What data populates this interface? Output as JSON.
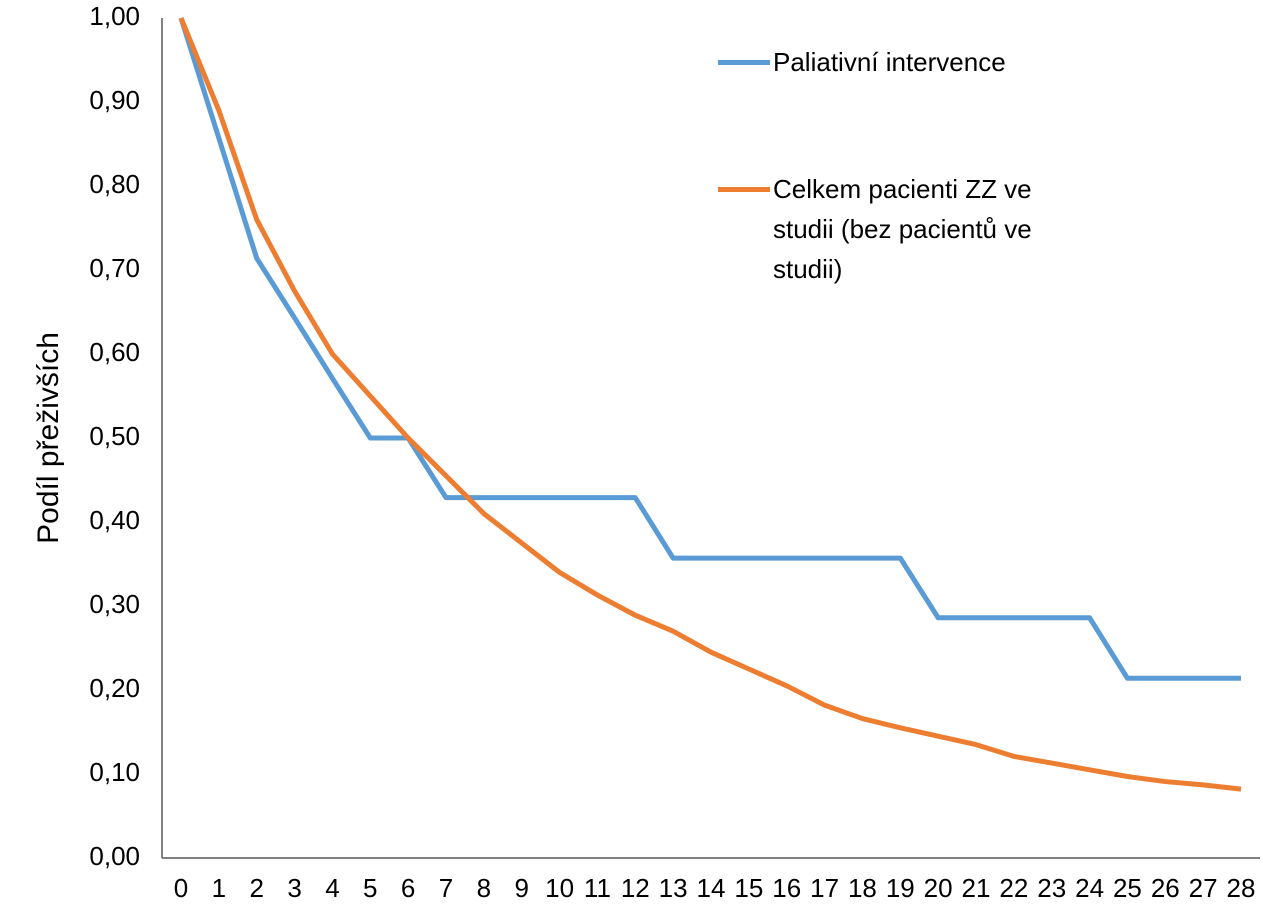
{
  "chart_data": {
    "type": "line",
    "y_label": "Podíl přeživších",
    "categories": [
      0,
      1,
      2,
      3,
      4,
      5,
      6,
      7,
      8,
      9,
      10,
      11,
      12,
      13,
      14,
      15,
      16,
      17,
      18,
      19,
      20,
      21,
      22,
      23,
      24,
      25,
      26,
      27,
      28
    ],
    "series": [
      {
        "name": "Paliativní intervence",
        "color": "#5b9bd5",
        "values": [
          1.0,
          0.857,
          0.714,
          0.643,
          0.571,
          0.5,
          0.5,
          0.429,
          0.429,
          0.429,
          0.429,
          0.429,
          0.429,
          0.357,
          0.357,
          0.357,
          0.357,
          0.357,
          0.357,
          0.357,
          0.286,
          0.286,
          0.286,
          0.286,
          0.286,
          0.214,
          0.214,
          0.214,
          0.214
        ]
      },
      {
        "name": "Celkem pacienti ZZ ve studii (bez pacientů ve studii)",
        "color": "#ed7d31",
        "values": [
          1.0,
          0.89,
          0.76,
          0.675,
          0.6,
          0.55,
          0.5,
          0.455,
          0.41,
          0.375,
          0.34,
          0.313,
          0.289,
          0.27,
          0.245,
          0.225,
          0.205,
          0.182,
          0.166,
          0.155,
          0.145,
          0.135,
          0.121,
          0.113,
          0.105,
          0.097,
          0.091,
          0.087,
          0.082
        ]
      }
    ],
    "ylim": [
      0,
      1
    ],
    "yticks": [
      {
        "value": 0,
        "label": "0,00"
      },
      {
        "value": 0.1,
        "label": "0,10"
      },
      {
        "value": 0.2,
        "label": "0,20"
      },
      {
        "value": 0.3,
        "label": "0,30"
      },
      {
        "value": 0.4,
        "label": "0,40"
      },
      {
        "value": 0.5,
        "label": "0,50"
      },
      {
        "value": 0.6,
        "label": "0,60"
      },
      {
        "value": 0.7,
        "label": "0,70"
      },
      {
        "value": 0.8,
        "label": "0,80"
      },
      {
        "value": 0.9,
        "label": "0,90"
      },
      {
        "value": 1,
        "label": "1,00"
      }
    ],
    "grid": false
  }
}
